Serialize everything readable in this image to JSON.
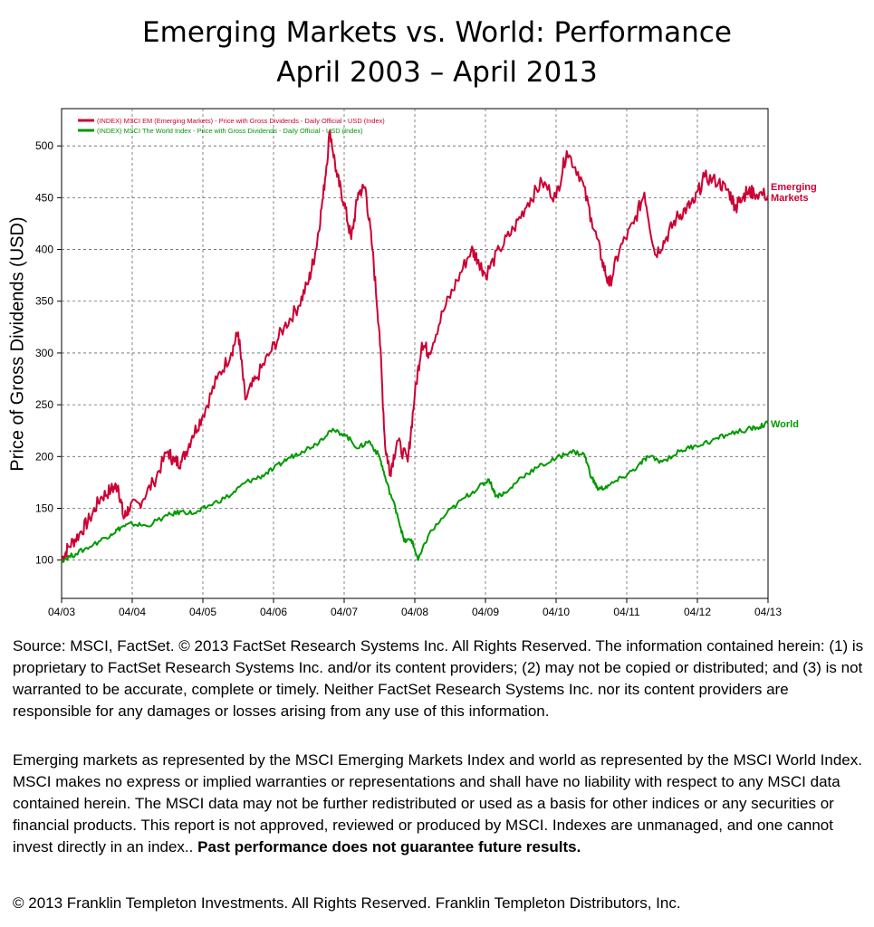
{
  "title": {
    "line1": "Emerging Markets vs. World: Performance",
    "line2": "April 2003 – April 2013"
  },
  "chart_data": {
    "type": "line",
    "ylabel": "Price of Gross Dividends (USD)",
    "ylim": [
      63,
      536
    ],
    "yticks": [
      100,
      150,
      200,
      250,
      300,
      350,
      400,
      450,
      500
    ],
    "x_tick_labels": [
      "04/03",
      "04/04",
      "04/05",
      "04/06",
      "04/07",
      "04/08",
      "04/09",
      "04/10",
      "04/11",
      "04/12",
      "04/13"
    ],
    "x_unit": "years since 04/03",
    "grid": true,
    "legend_placement": "top-left",
    "series": [
      {
        "name": "(INDEX) MSCI EM (Emerging Markets) - Price with Gross Dividends - Daily Official - USD (Index)",
        "end_label": "Emerging Markets",
        "color": "#cc0033",
        "points": [
          [
            0,
            100
          ],
          [
            0.1,
            113
          ],
          [
            0.25,
            125
          ],
          [
            0.4,
            140
          ],
          [
            0.55,
            160
          ],
          [
            0.7,
            168
          ],
          [
            0.8,
            172
          ],
          [
            0.88,
            140
          ],
          [
            0.95,
            150
          ],
          [
            1.1,
            155
          ],
          [
            1.3,
            175
          ],
          [
            1.5,
            205
          ],
          [
            1.6,
            195
          ],
          [
            1.7,
            195
          ],
          [
            1.85,
            220
          ],
          [
            2.0,
            240
          ],
          [
            2.2,
            275
          ],
          [
            2.4,
            300
          ],
          [
            2.5,
            320
          ],
          [
            2.6,
            255
          ],
          [
            2.75,
            275
          ],
          [
            2.95,
            300
          ],
          [
            3.15,
            325
          ],
          [
            3.35,
            345
          ],
          [
            3.5,
            370
          ],
          [
            3.6,
            400
          ],
          [
            3.7,
            450
          ],
          [
            3.8,
            515
          ],
          [
            3.9,
            470
          ],
          [
            4.0,
            445
          ],
          [
            4.1,
            410
          ],
          [
            4.2,
            455
          ],
          [
            4.3,
            460
          ],
          [
            4.4,
            400
          ],
          [
            4.5,
            320
          ],
          [
            4.58,
            210
          ],
          [
            4.65,
            185
          ],
          [
            4.75,
            215
          ],
          [
            4.9,
            195
          ],
          [
            5.0,
            260
          ],
          [
            5.1,
            310
          ],
          [
            5.2,
            300
          ],
          [
            5.4,
            340
          ],
          [
            5.6,
            370
          ],
          [
            5.8,
            400
          ],
          [
            5.9,
            390
          ],
          [
            6.0,
            375
          ],
          [
            6.2,
            400
          ],
          [
            6.4,
            420
          ],
          [
            6.6,
            445
          ],
          [
            6.8,
            465
          ],
          [
            7.0,
            450
          ],
          [
            7.15,
            495
          ],
          [
            7.35,
            470
          ],
          [
            7.5,
            430
          ],
          [
            7.65,
            390
          ],
          [
            7.75,
            365
          ],
          [
            7.9,
            400
          ],
          [
            8.1,
            425
          ],
          [
            8.25,
            455
          ],
          [
            8.4,
            395
          ],
          [
            8.55,
            410
          ],
          [
            8.7,
            430
          ],
          [
            8.85,
            440
          ],
          [
            8.95,
            445
          ],
          [
            9.1,
            470
          ],
          [
            9.3,
            465
          ],
          [
            9.45,
            455
          ],
          [
            9.55,
            440
          ],
          [
            9.6,
            450
          ],
          [
            9.7,
            455
          ],
          [
            9.8,
            455
          ],
          [
            10.0,
            452
          ]
        ]
      },
      {
        "name": "(INDEX) MSCI The World Index - Price with Gross Dividends - Daily Official - USD (Index)",
        "end_label": "World",
        "color": "#009900",
        "points": [
          [
            0,
            100
          ],
          [
            0.2,
            106
          ],
          [
            0.45,
            115
          ],
          [
            0.7,
            125
          ],
          [
            0.85,
            132
          ],
          [
            1.0,
            135
          ],
          [
            1.2,
            133
          ],
          [
            1.5,
            143
          ],
          [
            1.7,
            147
          ],
          [
            1.9,
            145
          ],
          [
            2.1,
            153
          ],
          [
            2.4,
            163
          ],
          [
            2.6,
            175
          ],
          [
            2.8,
            180
          ],
          [
            3.0,
            188
          ],
          [
            3.2,
            198
          ],
          [
            3.4,
            205
          ],
          [
            3.6,
            212
          ],
          [
            3.8,
            225
          ],
          [
            4.0,
            222
          ],
          [
            4.2,
            208
          ],
          [
            4.35,
            215
          ],
          [
            4.5,
            200
          ],
          [
            4.6,
            175
          ],
          [
            4.75,
            145
          ],
          [
            4.85,
            118
          ],
          [
            4.95,
            120
          ],
          [
            5.05,
            100
          ],
          [
            5.2,
            125
          ],
          [
            5.45,
            145
          ],
          [
            5.7,
            160
          ],
          [
            5.9,
            170
          ],
          [
            6.05,
            178
          ],
          [
            6.15,
            162
          ],
          [
            6.3,
            165
          ],
          [
            6.5,
            180
          ],
          [
            6.75,
            190
          ],
          [
            7.0,
            198
          ],
          [
            7.2,
            205
          ],
          [
            7.4,
            202
          ],
          [
            7.5,
            180
          ],
          [
            7.6,
            168
          ],
          [
            7.75,
            172
          ],
          [
            7.95,
            180
          ],
          [
            8.15,
            190
          ],
          [
            8.3,
            200
          ],
          [
            8.5,
            195
          ],
          [
            8.75,
            205
          ],
          [
            8.95,
            210
          ],
          [
            9.2,
            215
          ],
          [
            9.45,
            222
          ],
          [
            9.7,
            226
          ],
          [
            9.85,
            228
          ],
          [
            10.0,
            232
          ]
        ]
      }
    ]
  },
  "source_text": "Source: MSCI, FactSet. © 2013 FactSet Research Systems Inc. All Rights Reserved. The information contained herein: (1) is proprietary to FactSet Research Systems Inc. and/or its content providers; (2) may not be copied or distributed; and (3) is not warranted to be accurate, complete or timely. Neither FactSet Research Systems Inc. nor its content providers are responsible for any damages or losses arising from any use of this information.",
  "disclaimer_text": "Emerging markets as represented by the MSCI Emerging Markets Index and world as represented by the MSCI World Index. MSCI makes no express or implied warranties or representations and shall have no liability with respect to any MSCI data contained herein. The MSCI data may not be further redistributed or used as a basis for other indices or any securities or financial products. This report is not approved, reviewed or produced by MSCI. Indexes are unmanaged, and one cannot invest directly in an index..",
  "disclaimer_bold": "Past performance does not guarantee future results.",
  "copyright_text": "© 2013 Franklin Templeton Investments. All Rights Reserved. Franklin Templeton Distributors, Inc."
}
